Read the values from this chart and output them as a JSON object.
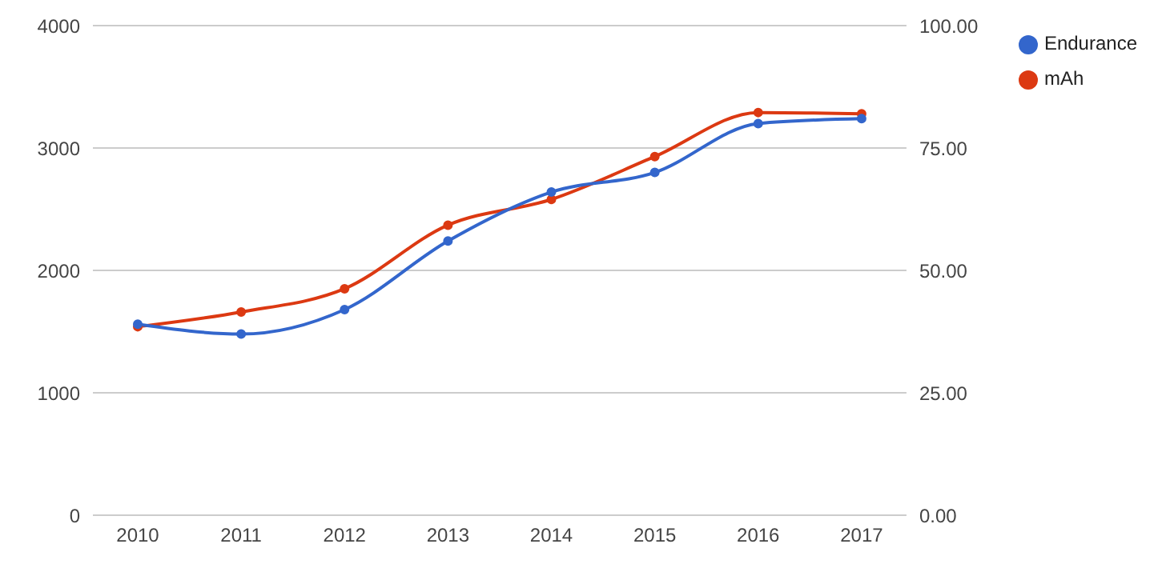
{
  "chart_data": {
    "type": "line",
    "categories": [
      "2010",
      "2011",
      "2012",
      "2013",
      "2014",
      "2015",
      "2016",
      "2017"
    ],
    "series": [
      {
        "name": "Endurance",
        "color": "#3366cc",
        "axis": "y2",
        "values": [
          39,
          37,
          42,
          56,
          66,
          70,
          80,
          81
        ]
      },
      {
        "name": "mAh",
        "color": "#dc3912",
        "values": [
          1540,
          1660,
          1850,
          2370,
          2580,
          2930,
          3290,
          3280
        ]
      }
    ],
    "ylim": [
      0,
      4000
    ],
    "yticks": [
      0,
      1000,
      2000,
      3000,
      4000
    ],
    "y2lim": [
      0,
      100
    ],
    "y2ticks": [
      {
        "value": 0,
        "label": "0.00"
      },
      {
        "value": 25,
        "label": "25.00"
      },
      {
        "value": 50,
        "label": "50.00"
      },
      {
        "value": 75,
        "label": "75.00"
      },
      {
        "value": 100,
        "label": "100.00"
      }
    ],
    "grid": "y",
    "legend": "top right",
    "marker": "circle",
    "line_style": "solid"
  }
}
